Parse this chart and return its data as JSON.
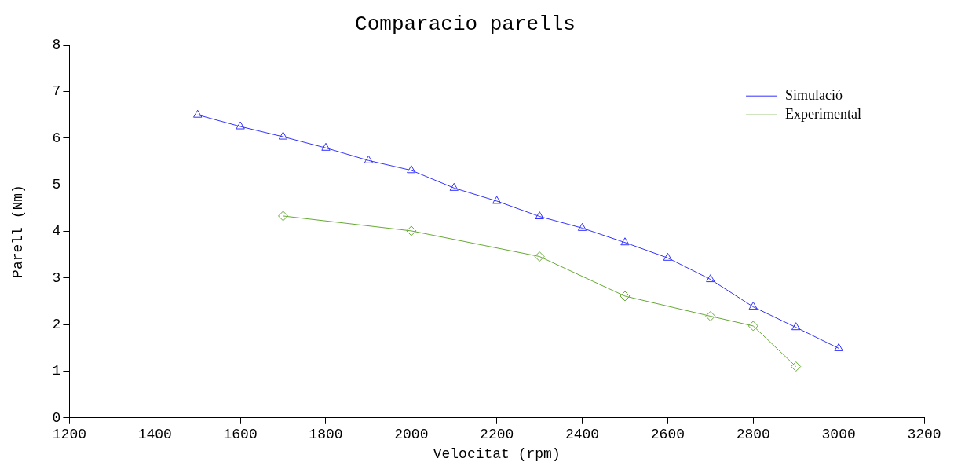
{
  "chart_data": {
    "type": "line",
    "title": "Comparacio parells",
    "xlabel": "Velocitat (rpm)",
    "ylabel": "Parell (Nm)",
    "xlim": [
      1200,
      3200
    ],
    "xticks": [
      1200,
      1400,
      1600,
      1800,
      2000,
      2200,
      2400,
      2600,
      2800,
      3000,
      3200
    ],
    "ylim": [
      0,
      8
    ],
    "yticks": [
      0,
      1,
      2,
      3,
      4,
      5,
      6,
      7,
      8
    ],
    "grid": false,
    "legend": "top right",
    "series": [
      {
        "name": "Simulació",
        "color": "#3333ff",
        "marker": "triangle",
        "x": [
          1500,
          1600,
          1700,
          1800,
          1900,
          2000,
          2100,
          2200,
          2300,
          2400,
          2500,
          2600,
          2700,
          2800,
          2900,
          3000
        ],
        "values": [
          6.5,
          6.25,
          6.03,
          5.79,
          5.52,
          5.31,
          4.93,
          4.65,
          4.32,
          4.07,
          3.76,
          3.43,
          2.97,
          2.38,
          1.94,
          1.49
        ]
      },
      {
        "name": "Experimental",
        "color": "#66aa33",
        "marker": "diamond",
        "x": [
          1700,
          2000,
          2300,
          2500,
          2700,
          2800,
          2900
        ],
        "values": [
          4.33,
          4.01,
          3.46,
          2.61,
          2.18,
          1.97,
          1.1
        ]
      }
    ]
  }
}
